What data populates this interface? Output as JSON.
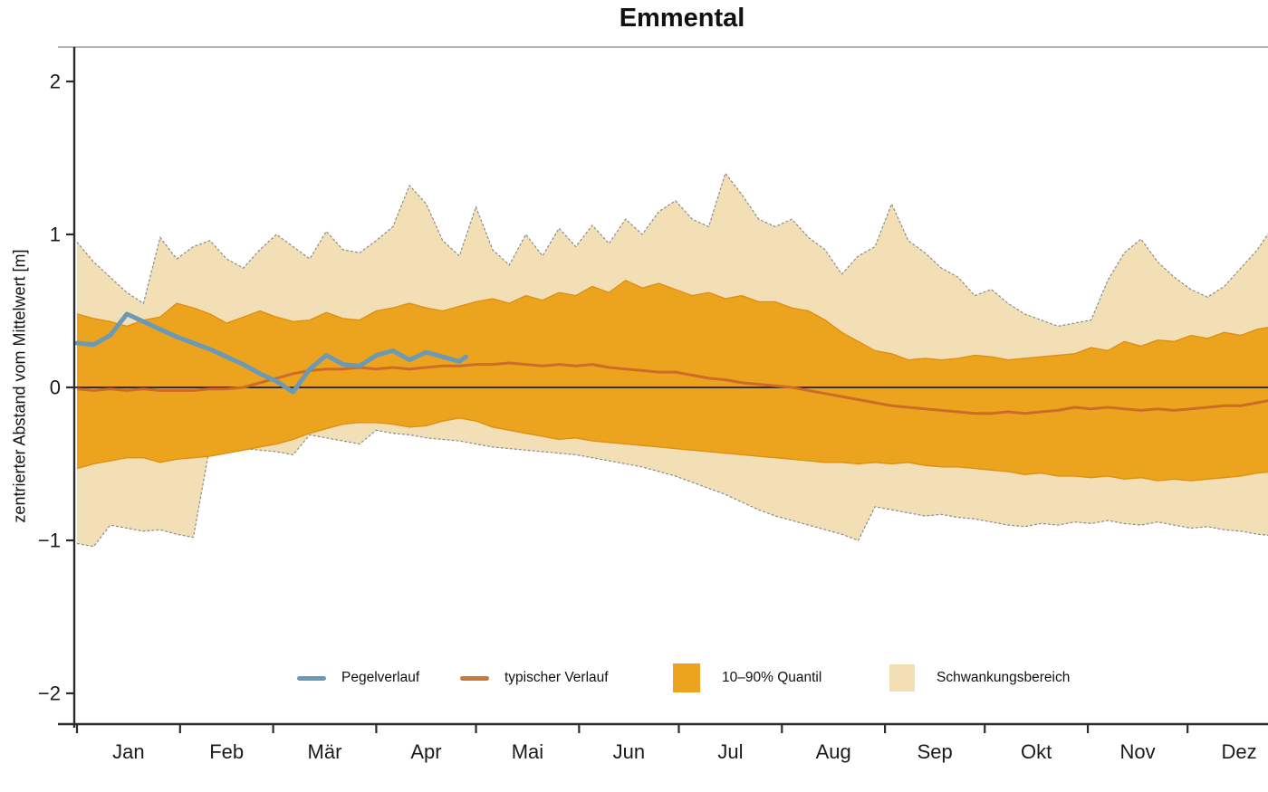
{
  "title": "Emmental",
  "y_axis": {
    "label": "zentrierter Abstand vom Mittelwert [m]",
    "tick_values": [
      2,
      1,
      0,
      -1,
      -2
    ],
    "tick_labels": [
      "2",
      "1",
      "0",
      "−1",
      "−2"
    ]
  },
  "x_axis": {
    "month_labels": [
      "Jan",
      "Feb",
      "Mär",
      "Apr",
      "Mai",
      "Jun",
      "Jul",
      "Aug",
      "Sep",
      "Okt",
      "Nov",
      "Dez"
    ]
  },
  "legend": {
    "items": [
      {
        "label": "Pegelverlauf",
        "type": "line",
        "color": "#6A9AB6"
      },
      {
        "label": "typischer Verlauf",
        "type": "line",
        "color": "#C87A38"
      },
      {
        "label": "10–90% Quantil",
        "type": "rect",
        "color": "#ECA31E"
      },
      {
        "label": "Schwankungsbereich",
        "type": "rect",
        "color": "#F2DFB5"
      }
    ]
  },
  "colors": {
    "quantile_band": "#ECA31E",
    "quantile_edge": "#DE8E10",
    "range_band": "#F2DFB5",
    "range_edge": "#8C8C8C",
    "pegel_line": "#6A9AB6",
    "typical_line": "#CE6B28",
    "zero_line": "#1c1c1c",
    "axis": "#2b2b2b",
    "top_border": "#9a9a9a",
    "text": "#1a1a1a"
  },
  "chart_data": {
    "type": "area",
    "title": "Emmental",
    "ylabel": "zentrierter Abstand vom Mittelwert [m]",
    "ylim": [
      -2.2,
      2.2
    ],
    "grid": false,
    "legend_position": "bottom-inside",
    "categories": [
      "Jan",
      "Feb",
      "Mär",
      "Apr",
      "Mai",
      "Jun",
      "Jul",
      "Aug",
      "Sep",
      "Okt",
      "Nov",
      "Dez"
    ],
    "x_days": [
      1,
      6,
      11,
      16,
      21,
      26,
      31,
      36,
      41,
      46,
      51,
      56,
      61,
      66,
      71,
      76,
      81,
      86,
      91,
      96,
      101,
      106,
      111,
      116,
      121,
      126,
      131,
      136,
      141,
      146,
      151,
      156,
      161,
      166,
      171,
      176,
      181,
      186,
      191,
      196,
      201,
      206,
      211,
      216,
      221,
      226,
      231,
      236,
      241,
      246,
      251,
      256,
      261,
      266,
      271,
      276,
      281,
      286,
      291,
      296,
      301,
      306,
      311,
      316,
      321,
      326,
      331,
      336,
      341,
      346,
      351,
      356,
      361
    ],
    "series": [
      {
        "name": "Schwankungsbereich oben",
        "values": [
          0.95,
          0.82,
          0.72,
          0.62,
          0.55,
          0.98,
          0.84,
          0.92,
          0.96,
          0.84,
          0.78,
          0.9,
          1.0,
          0.92,
          0.84,
          1.02,
          0.9,
          0.88,
          0.96,
          1.05,
          1.32,
          1.2,
          0.96,
          0.86,
          1.18,
          0.9,
          0.8,
          1.0,
          0.86,
          1.04,
          0.92,
          1.06,
          0.94,
          1.1,
          1.0,
          1.15,
          1.22,
          1.1,
          1.05,
          1.4,
          1.26,
          1.1,
          1.05,
          1.1,
          0.98,
          0.9,
          0.74,
          0.86,
          0.92,
          1.2,
          0.96,
          0.88,
          0.78,
          0.72,
          0.6,
          0.64,
          0.55,
          0.48,
          0.44,
          0.4,
          0.42,
          0.44,
          0.7,
          0.88,
          0.97,
          0.82,
          0.72,
          0.64,
          0.59,
          0.66,
          0.78,
          0.9,
          1.06
        ]
      },
      {
        "name": "Schwankungsbereich unten",
        "values": [
          -1.02,
          -1.04,
          -0.9,
          -0.92,
          -0.94,
          -0.93,
          -0.96,
          -0.98,
          -0.38,
          -0.39,
          -0.4,
          -0.41,
          -0.42,
          -0.44,
          -0.31,
          -0.33,
          -0.35,
          -0.37,
          -0.28,
          -0.3,
          -0.31,
          -0.33,
          -0.34,
          -0.35,
          -0.37,
          -0.39,
          -0.4,
          -0.41,
          -0.42,
          -0.43,
          -0.44,
          -0.46,
          -0.48,
          -0.5,
          -0.52,
          -0.55,
          -0.58,
          -0.62,
          -0.66,
          -0.7,
          -0.75,
          -0.8,
          -0.84,
          -0.87,
          -0.9,
          -0.93,
          -0.96,
          -1.0,
          -0.78,
          -0.8,
          -0.82,
          -0.84,
          -0.83,
          -0.85,
          -0.86,
          -0.88,
          -0.9,
          -0.91,
          -0.89,
          -0.9,
          -0.88,
          -0.89,
          -0.87,
          -0.89,
          -0.9,
          -0.88,
          -0.9,
          -0.92,
          -0.91,
          -0.93,
          -0.94,
          -0.96,
          -0.97
        ]
      },
      {
        "name": "Quantil 90%",
        "values": [
          0.48,
          0.45,
          0.43,
          0.4,
          0.44,
          0.46,
          0.55,
          0.52,
          0.48,
          0.42,
          0.46,
          0.5,
          0.46,
          0.43,
          0.44,
          0.49,
          0.45,
          0.44,
          0.5,
          0.52,
          0.55,
          0.52,
          0.5,
          0.53,
          0.56,
          0.58,
          0.55,
          0.6,
          0.57,
          0.62,
          0.6,
          0.66,
          0.62,
          0.7,
          0.65,
          0.68,
          0.64,
          0.6,
          0.62,
          0.58,
          0.6,
          0.56,
          0.56,
          0.52,
          0.5,
          0.44,
          0.36,
          0.3,
          0.24,
          0.22,
          0.18,
          0.19,
          0.18,
          0.19,
          0.21,
          0.2,
          0.18,
          0.19,
          0.2,
          0.21,
          0.22,
          0.26,
          0.24,
          0.3,
          0.27,
          0.31,
          0.3,
          0.34,
          0.32,
          0.36,
          0.34,
          0.38,
          0.4
        ]
      },
      {
        "name": "Quantil 10%",
        "values": [
          -0.53,
          -0.5,
          -0.48,
          -0.46,
          -0.46,
          -0.49,
          -0.47,
          -0.46,
          -0.45,
          -0.43,
          -0.41,
          -0.39,
          -0.37,
          -0.34,
          -0.3,
          -0.27,
          -0.24,
          -0.23,
          -0.23,
          -0.24,
          -0.26,
          -0.25,
          -0.22,
          -0.2,
          -0.22,
          -0.26,
          -0.28,
          -0.3,
          -0.32,
          -0.34,
          -0.33,
          -0.35,
          -0.36,
          -0.37,
          -0.38,
          -0.39,
          -0.4,
          -0.41,
          -0.42,
          -0.43,
          -0.44,
          -0.45,
          -0.46,
          -0.47,
          -0.48,
          -0.49,
          -0.49,
          -0.5,
          -0.49,
          -0.5,
          -0.49,
          -0.51,
          -0.52,
          -0.52,
          -0.53,
          -0.54,
          -0.55,
          -0.57,
          -0.56,
          -0.58,
          -0.58,
          -0.59,
          -0.58,
          -0.6,
          -0.59,
          -0.61,
          -0.6,
          -0.61,
          -0.6,
          -0.59,
          -0.58,
          -0.56,
          -0.55
        ]
      },
      {
        "name": "typischer Verlauf",
        "values": [
          -0.01,
          -0.02,
          -0.01,
          -0.02,
          -0.01,
          -0.02,
          -0.02,
          -0.02,
          -0.01,
          -0.01,
          0.0,
          0.03,
          0.06,
          0.09,
          0.11,
          0.12,
          0.12,
          0.13,
          0.12,
          0.13,
          0.12,
          0.13,
          0.14,
          0.14,
          0.15,
          0.15,
          0.16,
          0.15,
          0.14,
          0.15,
          0.14,
          0.15,
          0.13,
          0.12,
          0.11,
          0.1,
          0.1,
          0.08,
          0.06,
          0.05,
          0.03,
          0.02,
          0.01,
          0.0,
          -0.02,
          -0.04,
          -0.06,
          -0.08,
          -0.1,
          -0.12,
          -0.13,
          -0.14,
          -0.15,
          -0.16,
          -0.17,
          -0.17,
          -0.16,
          -0.17,
          -0.16,
          -0.15,
          -0.13,
          -0.14,
          -0.13,
          -0.14,
          -0.15,
          -0.14,
          -0.15,
          -0.14,
          -0.13,
          -0.12,
          -0.12,
          -0.1,
          -0.08
        ]
      },
      {
        "name": "Pegelverlauf",
        "x_days": [
          1,
          6,
          11,
          16,
          21,
          26,
          31,
          36,
          41,
          46,
          51,
          56,
          61,
          66,
          71,
          76,
          81,
          86,
          91,
          96,
          101,
          106,
          111,
          116,
          118
        ],
        "values": [
          0.29,
          0.28,
          0.34,
          0.48,
          0.43,
          0.38,
          0.33,
          0.29,
          0.25,
          0.2,
          0.15,
          0.09,
          0.04,
          -0.03,
          0.12,
          0.21,
          0.15,
          0.14,
          0.21,
          0.24,
          0.18,
          0.23,
          0.2,
          0.17,
          0.2
        ]
      }
    ]
  }
}
